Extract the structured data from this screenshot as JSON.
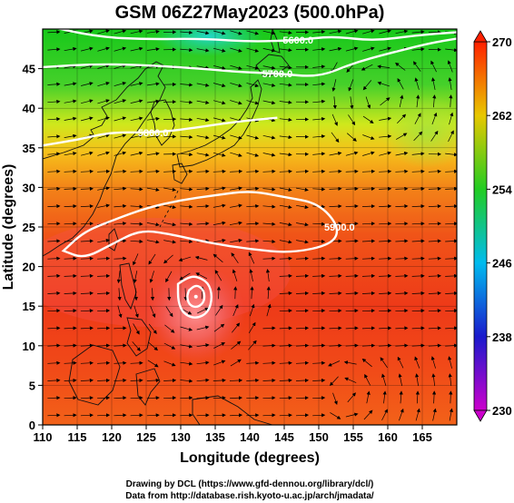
{
  "chart_data": {
    "type": "heatmap",
    "title": "GSM 06Z27May2023 (500.0hPa)",
    "xlabel": "Longitude (degrees)",
    "ylabel": "Latitude  (degrees)",
    "xlim": [
      110,
      170
    ],
    "ylim": [
      0,
      50
    ],
    "x_ticks": [
      110,
      115,
      120,
      125,
      130,
      135,
      140,
      145,
      150,
      155,
      160,
      165
    ],
    "y_ticks": [
      0,
      5,
      10,
      15,
      20,
      25,
      30,
      35,
      40,
      45
    ],
    "colorbar": {
      "ticks": [
        230,
        238,
        246,
        254,
        262,
        270
      ],
      "range": [
        230,
        270
      ],
      "colors": [
        "#cc00cc",
        "#1a1acc",
        "#00bbee",
        "#22cc22",
        "#e8c800",
        "#ff2000"
      ]
    },
    "contours": [
      {
        "label": "5600.0",
        "lon": [
          110,
          118,
          125,
          133,
          140,
          147,
          152,
          158,
          164,
          170
        ],
        "lat": [
          50.5,
          49.0,
          48.7,
          48.8,
          48.4,
          48.6,
          49.1,
          48.5,
          49.2,
          49.6
        ]
      },
      {
        "label": "5700.0",
        "lon": [
          110,
          118,
          126,
          133,
          138,
          144,
          150,
          155,
          160,
          166,
          170
        ],
        "lat": [
          45.2,
          45.6,
          45.4,
          45.0,
          44.6,
          44.4,
          43.9,
          45.7,
          46.9,
          48.2,
          48.8
        ]
      },
      {
        "label": "5800.0",
        "lon": [
          110,
          115,
          120,
          126,
          131,
          138,
          144
        ],
        "lat": [
          35.3,
          36.0,
          37.0,
          36.9,
          37.4,
          38.3,
          38.8
        ]
      },
      {
        "label": "5900.0",
        "lon": [
          113,
          116,
          120,
          125,
          130,
          135,
          140,
          145,
          150,
          153,
          152,
          146,
          140,
          134,
          128,
          124,
          120,
          116,
          113
        ],
        "lat": [
          22.0,
          24.4,
          25.8,
          27.4,
          28.4,
          29.0,
          29.6,
          28.8,
          28.0,
          25.0,
          22.8,
          21.7,
          22.2,
          23.0,
          24.2,
          24.6,
          22.8,
          21.0,
          22.0
        ],
        "closed": true
      },
      {
        "label": "",
        "lon": [
          131.2,
          132.2,
          133.2,
          133.5,
          133.2,
          132.2,
          131.2,
          130.9,
          131.2
        ],
        "lat": [
          17.0,
          17.7,
          17.2,
          16.2,
          15.3,
          14.8,
          15.2,
          16.2,
          17.0
        ],
        "closed": true
      },
      {
        "label": "",
        "lon": [
          129.6,
          131.0,
          132.2,
          134.0,
          134.6,
          134.0,
          132.2,
          130.4,
          129.6,
          129.6
        ],
        "lat": [
          17.8,
          18.6,
          18.8,
          18.0,
          16.2,
          14.2,
          13.4,
          14.0,
          15.6,
          17.8
        ],
        "closed": true
      }
    ]
  }
}
